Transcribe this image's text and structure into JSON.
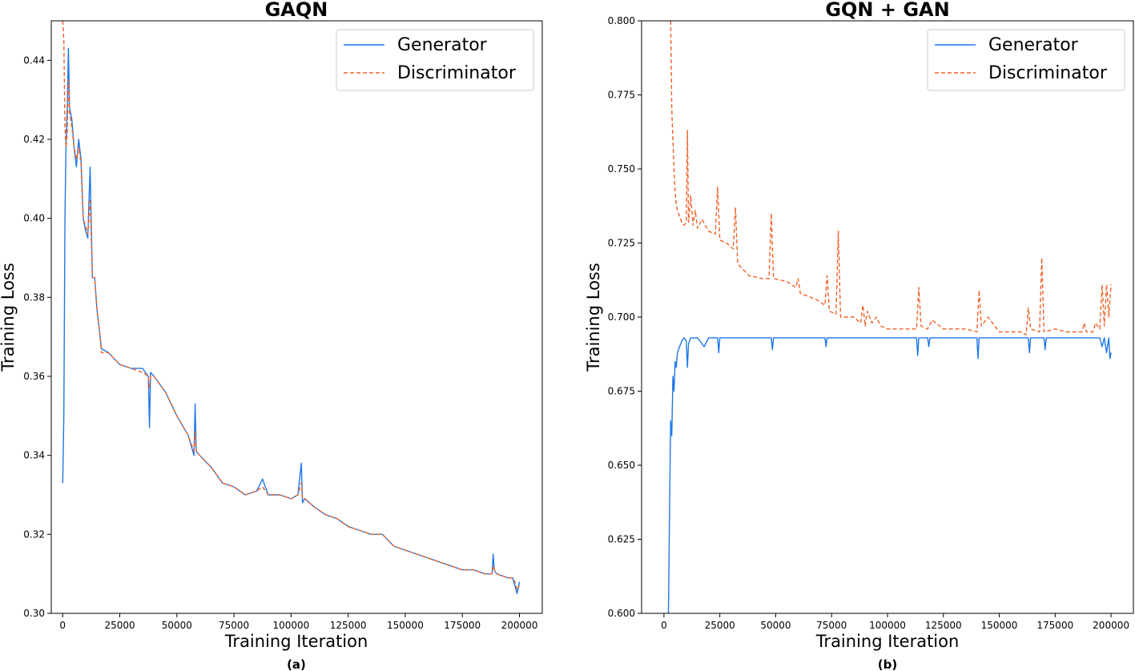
{
  "colors": {
    "generator": "#1f77e8",
    "discriminator": "#f0622a"
  },
  "chart_data": [
    {
      "type": "line",
      "title": "GAQN",
      "caption": "(a)",
      "xlabel": "Training Iteration",
      "ylabel": "Training Loss",
      "xlim": [
        -5000,
        210000
      ],
      "ylim": [
        0.3,
        0.45
      ],
      "xticks": [
        0,
        25000,
        50000,
        75000,
        100000,
        125000,
        150000,
        175000,
        200000
      ],
      "yticks": [
        0.3,
        0.32,
        0.34,
        0.36,
        0.38,
        0.4,
        0.42,
        0.44
      ],
      "ytick_labels": [
        "0.30",
        "0.32",
        "0.34",
        "0.36",
        "0.38",
        "0.40",
        "0.42",
        "0.44"
      ],
      "legend_position": "top-right",
      "series": [
        {
          "name": "Generator",
          "style": "solid",
          "x": [
            0,
            500,
            1000,
            1500,
            2000,
            2500,
            3000,
            4000,
            5000,
            6000,
            7000,
            8000,
            9000,
            10000,
            11000,
            12000,
            13000,
            14000,
            15000,
            16000,
            17000,
            20000,
            25000,
            30000,
            35000,
            37500,
            38000,
            38500,
            40000,
            45000,
            50000,
            55000,
            57500,
            58000,
            58500,
            60000,
            65000,
            70000,
            75000,
            80000,
            85000,
            87500,
            90000,
            95000,
            100000,
            103000,
            104500,
            105000,
            106000,
            110000,
            115000,
            120000,
            125000,
            130000,
            135000,
            140000,
            145000,
            150000,
            155000,
            160000,
            165000,
            170000,
            175000,
            180000,
            185000,
            188000,
            188500,
            189000,
            190000,
            195000,
            197000,
            198000,
            199000,
            200000
          ],
          "y": [
            0.333,
            0.35,
            0.4,
            0.42,
            0.428,
            0.443,
            0.428,
            0.425,
            0.418,
            0.413,
            0.42,
            0.415,
            0.4,
            0.397,
            0.395,
            0.413,
            0.385,
            0.385,
            0.377,
            0.372,
            0.367,
            0.366,
            0.363,
            0.362,
            0.362,
            0.36,
            0.347,
            0.361,
            0.36,
            0.356,
            0.35,
            0.345,
            0.34,
            0.353,
            0.341,
            0.34,
            0.337,
            0.333,
            0.332,
            0.33,
            0.331,
            0.334,
            0.33,
            0.33,
            0.329,
            0.33,
            0.338,
            0.328,
            0.329,
            0.327,
            0.325,
            0.324,
            0.322,
            0.321,
            0.32,
            0.32,
            0.317,
            0.316,
            0.315,
            0.314,
            0.313,
            0.312,
            0.311,
            0.311,
            0.31,
            0.31,
            0.315,
            0.311,
            0.31,
            0.309,
            0.309,
            0.307,
            0.305,
            0.308
          ]
        },
        {
          "name": "Discriminator",
          "style": "dashed",
          "x": [
            0,
            500,
            1000,
            1500,
            2000,
            2500,
            3000,
            4000,
            5000,
            6000,
            7000,
            8000,
            9000,
            10000,
            11000,
            12000,
            13000,
            14000,
            15000,
            16000,
            17000,
            20000,
            25000,
            30000,
            35000,
            37500,
            38000,
            38500,
            40000,
            45000,
            50000,
            55000,
            57500,
            58000,
            58500,
            60000,
            65000,
            70000,
            75000,
            80000,
            85000,
            87500,
            90000,
            95000,
            100000,
            103000,
            104500,
            105000,
            106000,
            110000,
            115000,
            120000,
            125000,
            130000,
            135000,
            140000,
            145000,
            150000,
            155000,
            160000,
            165000,
            170000,
            175000,
            180000,
            185000,
            188000,
            188500,
            189000,
            190000,
            195000,
            197000,
            198000,
            199000,
            200000
          ],
          "y": [
            0.45,
            0.445,
            0.423,
            0.418,
            0.422,
            0.435,
            0.427,
            0.423,
            0.418,
            0.415,
            0.418,
            0.414,
            0.4,
            0.398,
            0.396,
            0.405,
            0.385,
            0.385,
            0.377,
            0.372,
            0.366,
            0.366,
            0.363,
            0.362,
            0.361,
            0.36,
            0.357,
            0.36,
            0.36,
            0.356,
            0.35,
            0.345,
            0.341,
            0.346,
            0.341,
            0.34,
            0.337,
            0.333,
            0.332,
            0.33,
            0.331,
            0.332,
            0.33,
            0.33,
            0.329,
            0.33,
            0.333,
            0.329,
            0.329,
            0.327,
            0.325,
            0.324,
            0.322,
            0.321,
            0.32,
            0.32,
            0.317,
            0.316,
            0.315,
            0.314,
            0.313,
            0.312,
            0.311,
            0.311,
            0.31,
            0.31,
            0.312,
            0.311,
            0.31,
            0.309,
            0.309,
            0.308,
            0.306,
            0.307
          ]
        }
      ]
    },
    {
      "type": "line",
      "title": "GQN + GAN",
      "caption": "(b)",
      "xlabel": "Training Iteration",
      "ylabel": "Training Loss",
      "xlim": [
        -10000,
        210000
      ],
      "ylim": [
        0.6,
        0.8
      ],
      "xticks": [
        0,
        25000,
        50000,
        75000,
        100000,
        125000,
        150000,
        175000,
        200000
      ],
      "yticks": [
        0.6,
        0.625,
        0.65,
        0.675,
        0.7,
        0.725,
        0.75,
        0.775,
        0.8
      ],
      "ytick_labels": [
        "0.600",
        "0.625",
        "0.650",
        "0.675",
        "0.700",
        "0.725",
        "0.750",
        "0.775",
        "0.800"
      ],
      "legend_position": "top-right",
      "series": [
        {
          "name": "Generator",
          "style": "solid",
          "x": [
            2000,
            2500,
            3000,
            3500,
            4000,
            4500,
            5000,
            5500,
            6000,
            7000,
            8000,
            9000,
            10000,
            10500,
            11000,
            12000,
            15000,
            18000,
            20000,
            24000,
            24500,
            25000,
            30000,
            40000,
            48000,
            48500,
            49000,
            60000,
            72000,
            72500,
            73000,
            90000,
            100000,
            113000,
            113500,
            114000,
            118000,
            118500,
            119000,
            130000,
            140000,
            140500,
            141000,
            150000,
            163000,
            163500,
            164000,
            170000,
            170500,
            171000,
            180000,
            190000,
            195000,
            196000,
            197000,
            198000,
            199000,
            199500,
            200000
          ],
          "y": [
            0.6,
            0.635,
            0.665,
            0.66,
            0.68,
            0.675,
            0.685,
            0.683,
            0.688,
            0.69,
            0.692,
            0.693,
            0.692,
            0.683,
            0.691,
            0.693,
            0.693,
            0.69,
            0.693,
            0.693,
            0.688,
            0.693,
            0.693,
            0.693,
            0.693,
            0.689,
            0.693,
            0.693,
            0.693,
            0.69,
            0.693,
            0.693,
            0.693,
            0.693,
            0.687,
            0.693,
            0.693,
            0.69,
            0.693,
            0.693,
            0.693,
            0.686,
            0.693,
            0.693,
            0.693,
            0.688,
            0.693,
            0.693,
            0.689,
            0.693,
            0.693,
            0.693,
            0.693,
            0.69,
            0.693,
            0.688,
            0.693,
            0.686,
            0.688
          ]
        },
        {
          "name": "Discriminator",
          "style": "dashed",
          "x": [
            3000,
            3500,
            4000,
            4500,
            5000,
            5500,
            6000,
            7000,
            8000,
            9000,
            10000,
            10500,
            11000,
            12000,
            13000,
            14000,
            15000,
            17000,
            20000,
            23000,
            24000,
            25000,
            28000,
            31000,
            32000,
            33000,
            38000,
            44000,
            47000,
            48000,
            49000,
            55000,
            59000,
            60000,
            61000,
            68000,
            72000,
            73000,
            74000,
            77000,
            78000,
            79000,
            85000,
            88000,
            89000,
            90000,
            91000,
            93000,
            95000,
            97000,
            100000,
            105000,
            110000,
            113000,
            114000,
            115000,
            118000,
            120000,
            125000,
            130000,
            135000,
            140000,
            141000,
            142000,
            145000,
            150000,
            155000,
            160000,
            162000,
            163000,
            164000,
            168000,
            169000,
            170000,
            175000,
            180000,
            187000,
            188000,
            189000,
            192000,
            193000,
            195000,
            196000,
            197000,
            198000,
            199000,
            200000
          ],
          "y": [
            0.8,
            0.77,
            0.76,
            0.75,
            0.742,
            0.738,
            0.736,
            0.734,
            0.732,
            0.731,
            0.732,
            0.763,
            0.732,
            0.741,
            0.731,
            0.736,
            0.73,
            0.733,
            0.729,
            0.728,
            0.744,
            0.726,
            0.725,
            0.723,
            0.737,
            0.718,
            0.714,
            0.713,
            0.713,
            0.735,
            0.713,
            0.712,
            0.71,
            0.713,
            0.708,
            0.706,
            0.704,
            0.714,
            0.702,
            0.701,
            0.729,
            0.7,
            0.7,
            0.698,
            0.704,
            0.697,
            0.702,
            0.698,
            0.7,
            0.697,
            0.696,
            0.696,
            0.696,
            0.696,
            0.71,
            0.697,
            0.696,
            0.699,
            0.696,
            0.696,
            0.696,
            0.695,
            0.709,
            0.697,
            0.7,
            0.695,
            0.695,
            0.695,
            0.694,
            0.703,
            0.696,
            0.695,
            0.72,
            0.695,
            0.696,
            0.695,
            0.695,
            0.698,
            0.695,
            0.695,
            0.698,
            0.696,
            0.711,
            0.697,
            0.711,
            0.7,
            0.711
          ]
        }
      ]
    }
  ]
}
